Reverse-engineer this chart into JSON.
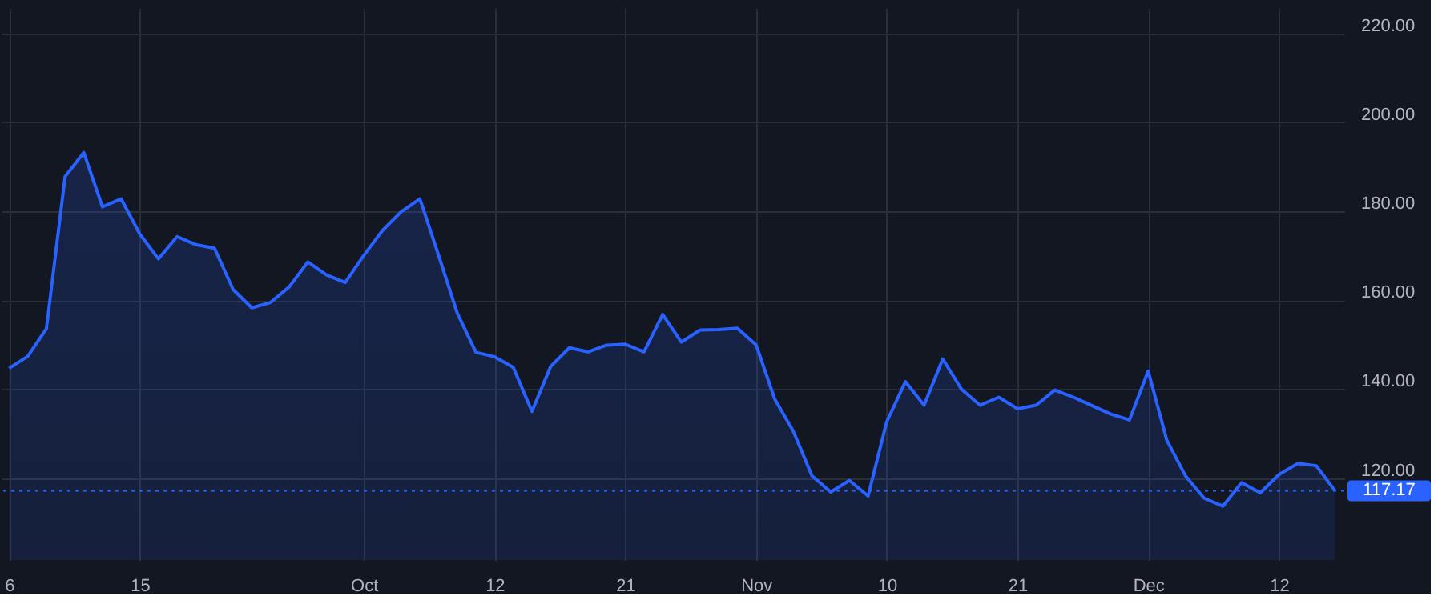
{
  "chart_data": {
    "type": "area",
    "categories": [
      "6",
      null,
      null,
      null,
      null,
      null,
      null,
      "15",
      null,
      null,
      null,
      null,
      null,
      null,
      null,
      null,
      null,
      null,
      null,
      "Oct",
      null,
      null,
      null,
      null,
      null,
      null,
      "12",
      null,
      null,
      null,
      null,
      null,
      null,
      "21",
      null,
      null,
      null,
      null,
      null,
      null,
      "Nov",
      null,
      null,
      null,
      null,
      null,
      null,
      "10",
      null,
      null,
      null,
      null,
      null,
      null,
      "21",
      null,
      null,
      null,
      null,
      null,
      null,
      "Dec",
      null,
      null,
      null,
      null,
      null,
      null,
      "12",
      null,
      null,
      null
    ],
    "series": [
      {
        "color": "#2962ff",
        "values": [
          144.7,
          147.4,
          153.6,
          187.8,
          193.2,
          181.0,
          182.8,
          174.9,
          169.3,
          174.3,
          172.5,
          171.7,
          162.4,
          158.3,
          159.5,
          163.0,
          168.6,
          165.7,
          164.0,
          170.1,
          175.7,
          179.9,
          182.8,
          170.1,
          157.1,
          148.3,
          147.3,
          144.9,
          135.0,
          145.1,
          149.3,
          148.4,
          149.9,
          150.1,
          148.4,
          156.8,
          150.6,
          153.3,
          153.4,
          153.7,
          150.0,
          137.8,
          130.5,
          120.5,
          116.9,
          119.5,
          116.0,
          132.7,
          141.7,
          136.4,
          146.8,
          140.0,
          136.4,
          138.2,
          135.6,
          136.4,
          139.8,
          138.2,
          136.3,
          134.4,
          133.1,
          144.1,
          128.5,
          120.5,
          115.5,
          113.7,
          119.0,
          116.7,
          120.8,
          123.3,
          122.8,
          117.17
        ]
      }
    ],
    "ylim": [
      101.6,
      225.7
    ],
    "yticks": [
      {
        "value": 120,
        "label": "120.00"
      },
      {
        "value": 140,
        "label": "140.00"
      },
      {
        "value": 160,
        "label": "160.00"
      },
      {
        "value": 180,
        "label": "180.00"
      },
      {
        "value": 200,
        "label": "200.00"
      },
      {
        "value": 220,
        "label": "220.00"
      }
    ],
    "ref_lines": [
      {
        "axis": "y",
        "value": 117.17,
        "label": "117.17",
        "color": "#2962ff",
        "line_style": "dotted"
      }
    ],
    "grid": true
  }
}
